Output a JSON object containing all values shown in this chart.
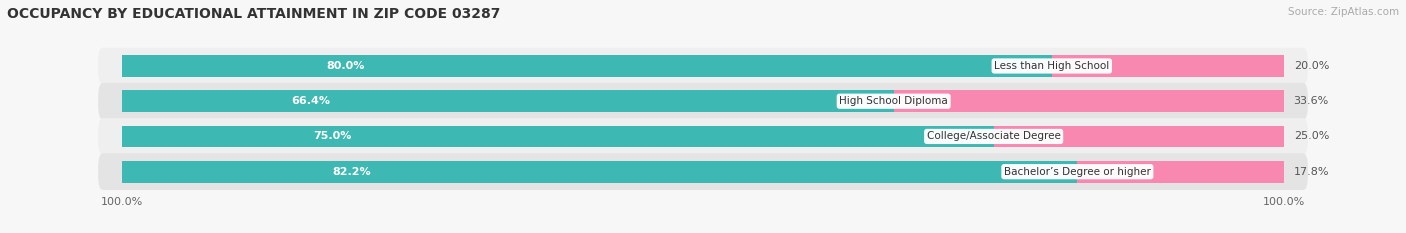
{
  "title": "OCCUPANCY BY EDUCATIONAL ATTAINMENT IN ZIP CODE 03287",
  "source": "Source: ZipAtlas.com",
  "categories": [
    "Less than High School",
    "High School Diploma",
    "College/Associate Degree",
    "Bachelor’s Degree or higher"
  ],
  "owner_values": [
    80.0,
    66.4,
    75.0,
    82.2
  ],
  "renter_values": [
    20.0,
    33.6,
    25.0,
    17.8
  ],
  "owner_color": "#3db8b3",
  "renter_color": "#f888b0",
  "title_fontsize": 10,
  "bar_height": 0.62,
  "row_bg_even": "#efefef",
  "row_bg_odd": "#e4e4e4",
  "fig_bg": "#f7f7f7"
}
